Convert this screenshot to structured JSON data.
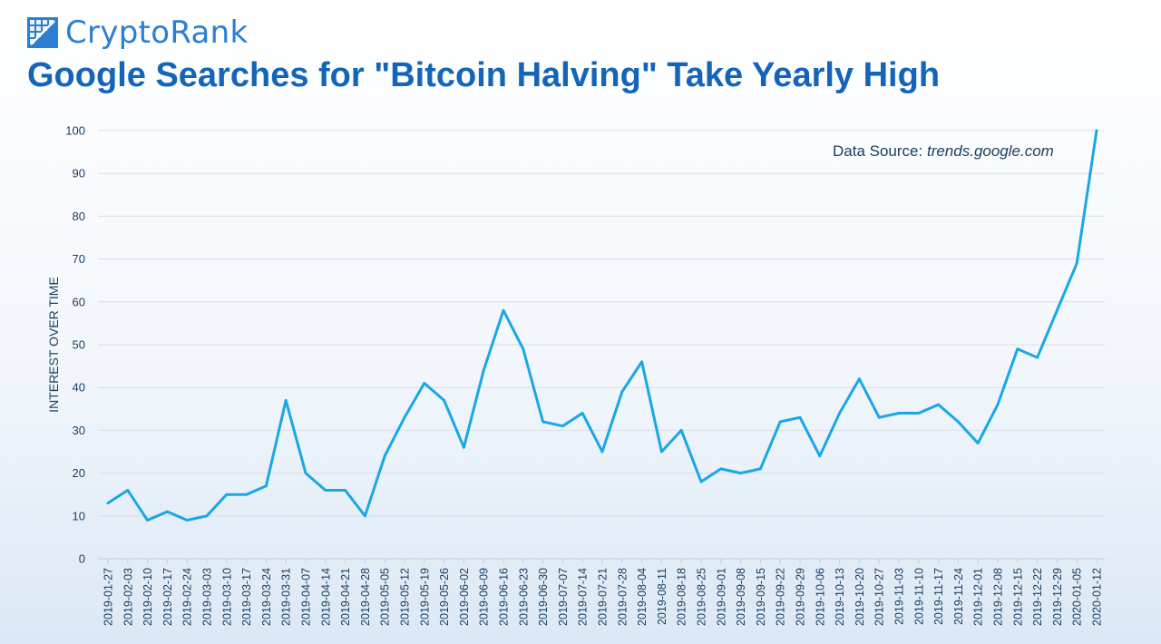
{
  "brand": {
    "name": "CryptoRank",
    "logo_icon": "grid-logo-icon",
    "color": "#2a7fd4"
  },
  "title": "Google Searches for \"Bitcoin Halving\" Take Yearly High",
  "source": {
    "label": "Data Source:",
    "value": "trends.google.com"
  },
  "colors": {
    "line": "#1aa7e6",
    "title": "#1464b8",
    "grid": "#d9dee5"
  },
  "chart_data": {
    "type": "line",
    "title": "Google Searches for \"Bitcoin Halving\" Take Yearly High",
    "xlabel": "",
    "ylabel": "INTEREST OVER TIME",
    "ylim": [
      0,
      100
    ],
    "yticks": [
      0,
      10,
      20,
      30,
      40,
      50,
      60,
      70,
      80,
      90,
      100
    ],
    "grid": true,
    "x": [
      "2019-01-27",
      "2019-02-03",
      "2019-02-10",
      "2019-02-17",
      "2019-02-24",
      "2019-03-03",
      "2019-03-10",
      "2019-03-17",
      "2019-03-24",
      "2019-03-31",
      "2019-04-07",
      "2019-04-14",
      "2019-04-21",
      "2019-04-28",
      "2019-05-05",
      "2019-05-12",
      "2019-05-19",
      "2019-05-26",
      "2019-06-02",
      "2019-06-09",
      "2019-06-16",
      "2019-06-23",
      "2019-06-30",
      "2019-07-07",
      "2019-07-14",
      "2019-07-21",
      "2019-07-28",
      "2019-08-04",
      "2019-08-11",
      "2019-08-18",
      "2019-08-25",
      "2019-09-01",
      "2019-09-08",
      "2019-09-15",
      "2019-09-22",
      "2019-09-29",
      "2019-10-06",
      "2019-10-13",
      "2019-10-20",
      "2019-10-27",
      "2019-11-03",
      "2019-11-10",
      "2019-11-17",
      "2019-11-24",
      "2019-12-01",
      "2019-12-08",
      "2019-12-15",
      "2019-12-22",
      "2019-12-29",
      "2020-01-05",
      "2020-01-12"
    ],
    "series": [
      {
        "values": [
          13,
          16,
          9,
          11,
          9,
          10,
          15,
          15,
          17,
          37,
          20,
          16,
          16,
          10,
          24,
          33,
          41,
          37,
          26,
          44,
          58,
          49,
          32,
          31,
          34,
          25,
          39,
          46,
          25,
          30,
          18,
          21,
          20,
          21,
          32,
          33,
          24,
          34,
          42,
          33,
          34,
          34,
          36,
          32,
          27,
          36,
          49,
          47,
          58,
          69,
          100
        ]
      }
    ]
  }
}
